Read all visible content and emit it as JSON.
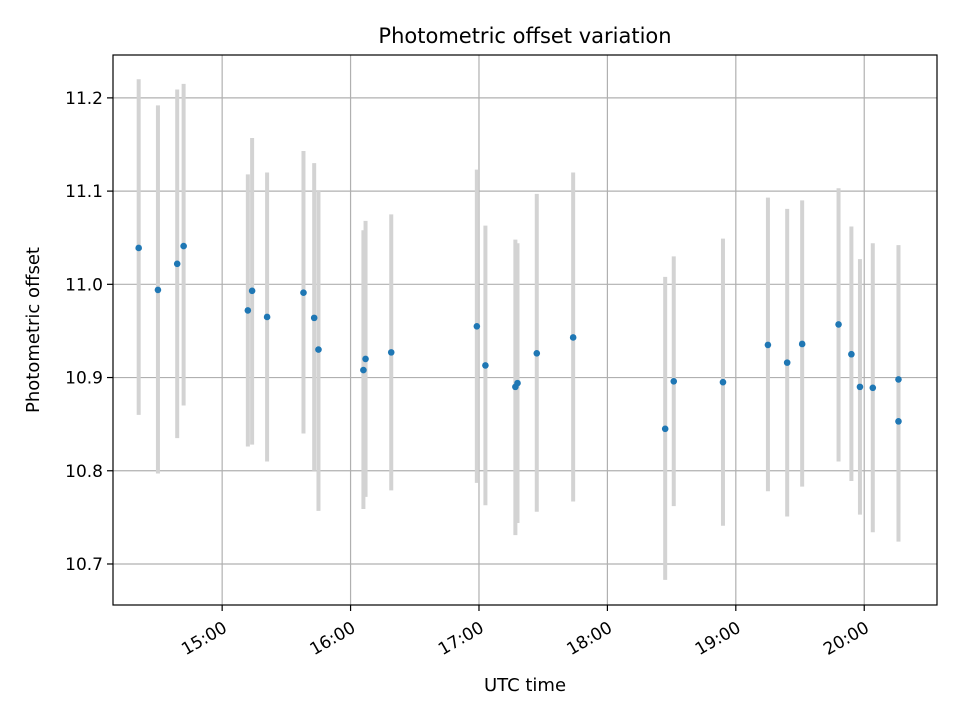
{
  "chart_data": {
    "type": "scatter",
    "title": "Photometric offset variation",
    "xlabel": "UTC time",
    "ylabel": "Photometric offset",
    "x_ticks": [
      "15:00",
      "16:00",
      "17:00",
      "18:00",
      "19:00",
      "20:00"
    ],
    "y_ticks": [
      "10.7",
      "10.8",
      "10.9",
      "11.0",
      "11.1",
      "11.2"
    ],
    "xlim": [
      "14:09",
      "20:34"
    ],
    "ylim": [
      10.656,
      11.246
    ],
    "grid": true,
    "point_color": "#1f77b4",
    "errorbar_color": "#d3d3d3",
    "points": [
      {
        "x": "14:21",
        "y": 11.039,
        "ylow": 10.86,
        "yhigh": 11.22
      },
      {
        "x": "14:30",
        "y": 10.994,
        "ylow": 10.797,
        "yhigh": 11.192
      },
      {
        "x": "14:39",
        "y": 11.022,
        "ylow": 10.835,
        "yhigh": 11.209
      },
      {
        "x": "14:42",
        "y": 11.041,
        "ylow": 10.87,
        "yhigh": 11.215
      },
      {
        "x": "15:12",
        "y": 10.972,
        "ylow": 10.826,
        "yhigh": 11.118
      },
      {
        "x": "15:14",
        "y": 10.993,
        "ylow": 10.828,
        "yhigh": 11.157
      },
      {
        "x": "15:21",
        "y": 10.965,
        "ylow": 10.81,
        "yhigh": 11.12
      },
      {
        "x": "15:38",
        "y": 10.991,
        "ylow": 10.84,
        "yhigh": 11.143
      },
      {
        "x": "15:43",
        "y": 10.964,
        "ylow": 10.8,
        "yhigh": 11.13
      },
      {
        "x": "15:45",
        "y": 10.93,
        "ylow": 10.757,
        "yhigh": 11.101
      },
      {
        "x": "16:06",
        "y": 10.908,
        "ylow": 10.759,
        "yhigh": 11.058
      },
      {
        "x": "16:07",
        "y": 10.92,
        "ylow": 10.772,
        "yhigh": 11.068
      },
      {
        "x": "16:19",
        "y": 10.927,
        "ylow": 10.779,
        "yhigh": 11.075
      },
      {
        "x": "16:59",
        "y": 10.955,
        "ylow": 10.787,
        "yhigh": 11.123
      },
      {
        "x": "17:03",
        "y": 10.913,
        "ylow": 10.763,
        "yhigh": 11.063
      },
      {
        "x": "17:17",
        "y": 10.89,
        "ylow": 10.731,
        "yhigh": 11.048
      },
      {
        "x": "17:18",
        "y": 10.894,
        "ylow": 10.744,
        "yhigh": 11.044
      },
      {
        "x": "17:27",
        "y": 10.926,
        "ylow": 10.756,
        "yhigh": 11.097
      },
      {
        "x": "17:44",
        "y": 10.943,
        "ylow": 10.767,
        "yhigh": 11.12
      },
      {
        "x": "18:27",
        "y": 10.845,
        "ylow": 10.683,
        "yhigh": 11.008
      },
      {
        "x": "18:31",
        "y": 10.896,
        "ylow": 10.762,
        "yhigh": 11.03
      },
      {
        "x": "18:54",
        "y": 10.895,
        "ylow": 10.741,
        "yhigh": 11.049
      },
      {
        "x": "19:15",
        "y": 10.935,
        "ylow": 10.778,
        "yhigh": 11.093
      },
      {
        "x": "19:24",
        "y": 10.916,
        "ylow": 10.751,
        "yhigh": 11.081
      },
      {
        "x": "19:31",
        "y": 10.936,
        "ylow": 10.783,
        "yhigh": 11.09
      },
      {
        "x": "19:48",
        "y": 10.957,
        "ylow": 10.81,
        "yhigh": 11.103
      },
      {
        "x": "19:54",
        "y": 10.925,
        "ylow": 10.789,
        "yhigh": 11.062
      },
      {
        "x": "19:58",
        "y": 10.89,
        "ylow": 10.753,
        "yhigh": 11.027
      },
      {
        "x": "20:04",
        "y": 10.889,
        "ylow": 10.734,
        "yhigh": 11.044
      },
      {
        "x": "20:16",
        "y": 10.853,
        "ylow": 10.724,
        "yhigh": 11.042
      },
      {
        "x": "20:16",
        "y": 10.898,
        "ylow": 10.755,
        "yhigh": 11.041
      }
    ]
  }
}
